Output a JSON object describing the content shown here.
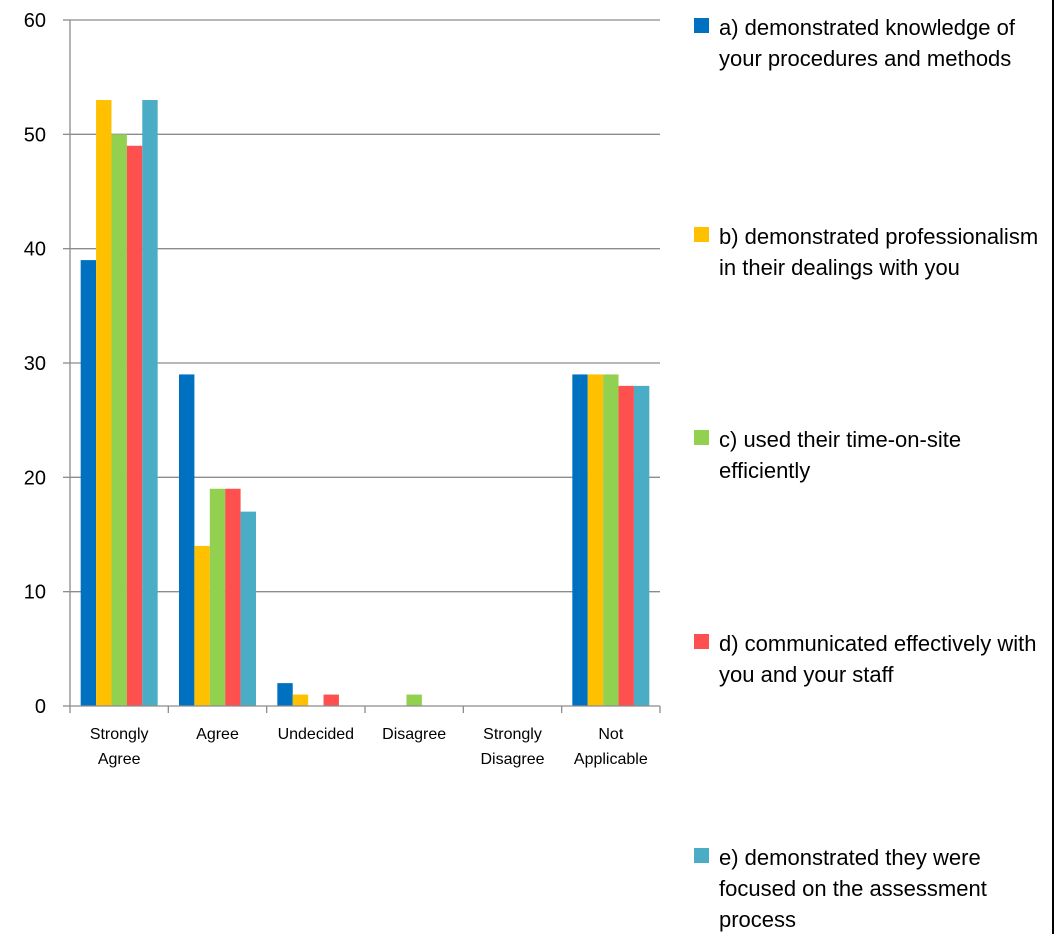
{
  "chart_data": {
    "type": "bar",
    "categories": [
      "Strongly Agree",
      "Agree",
      "Undecided",
      "Disagree",
      "Strongly Disagree",
      "Not Applicable"
    ],
    "category_labels": [
      [
        "Strongly",
        "Agree"
      ],
      [
        "Agree"
      ],
      [
        "Undecided"
      ],
      [
        "Disagree"
      ],
      [
        "Strongly",
        "Disagree"
      ],
      [
        "Not",
        "Applicable"
      ]
    ],
    "series": [
      {
        "name": "a) demonstrated knowledge of your procedures and methods",
        "color": "#0070C0",
        "values": [
          39,
          29,
          2,
          0,
          0,
          29
        ]
      },
      {
        "name": "b) demonstrated professionalism in their dealings with you",
        "color": "#FFC000",
        "values": [
          53,
          14,
          1,
          0,
          0,
          29
        ]
      },
      {
        "name": "c) used their time-on-site efficiently",
        "color": "#92D050",
        "values": [
          50,
          19,
          0,
          1,
          0,
          29
        ]
      },
      {
        "name": "d) communicated effectively with you and your staff",
        "color": "#FF5050",
        "values": [
          49,
          19,
          1,
          0,
          0,
          28
        ]
      },
      {
        "name": "e) demonstrated they were focused on the assessment process",
        "color": "#4BACC6",
        "values": [
          53,
          17,
          0,
          0,
          0,
          28
        ]
      }
    ],
    "ylim": [
      0,
      60
    ],
    "yticks": [
      0,
      10,
      20,
      30,
      40,
      50,
      60
    ],
    "grid": true,
    "legend": "right"
  }
}
